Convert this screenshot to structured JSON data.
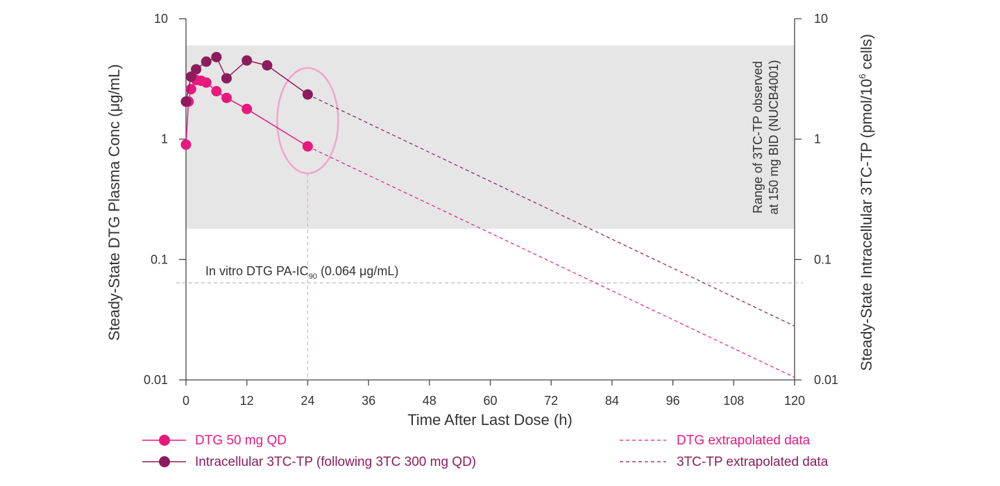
{
  "chart_data": {
    "type": "line",
    "x_axis": {
      "label": "Time After Last Dose (h)",
      "range": [
        0,
        120
      ],
      "ticks": [
        "0",
        "12",
        "24",
        "36",
        "48",
        "60",
        "72",
        "84",
        "96",
        "108",
        "120"
      ]
    },
    "y_left": {
      "label": "Steady-State DTG Plasma Conc (μg/mL)",
      "scale": "log",
      "range": [
        0.01,
        10
      ],
      "ticks": [
        "0.01",
        "0.1",
        "1",
        "10"
      ]
    },
    "y_right": {
      "label_main": "Steady-State Intracellular 3TC-TP (pmol/10",
      "label_sup": "6",
      "label_end": " cells)",
      "scale": "log",
      "range": [
        0.01,
        10
      ],
      "ticks": [
        "0.01",
        "0.1",
        "1",
        "10"
      ]
    },
    "shaded_band": {
      "y_range": [
        0.18,
        6.0
      ],
      "color": "#e6e6e6",
      "label_line1": "Range of 3TC-TP observed",
      "label_line2": "at 150 mg BID (NUCB4001)"
    },
    "reference_line": {
      "y": 0.064,
      "label_pre": "In vitro DTG PA-IC",
      "label_sub": "90",
      "label_post": " (0.064 μg/mL)",
      "color": "#bbbbbb"
    },
    "highlight_time": 24,
    "series": [
      {
        "name": "DTG 50 mg QD",
        "color": "#e8197d",
        "x": [
          0,
          0.5,
          1,
          2,
          3,
          4,
          6,
          8,
          12,
          24
        ],
        "y": [
          0.9,
          2.05,
          2.6,
          3.1,
          3.05,
          2.95,
          2.5,
          2.2,
          1.78,
          0.87
        ]
      },
      {
        "name": "Intracellular 3TC-TP (following 3TC 300 mg QD)",
        "color": "#8c1c5b",
        "x": [
          0,
          1,
          2,
          4,
          6,
          8,
          12,
          16,
          24
        ],
        "y": [
          2.05,
          3.3,
          3.8,
          4.4,
          4.8,
          3.2,
          4.5,
          4.1,
          2.35
        ]
      }
    ],
    "extrapolated": [
      {
        "name": "DTG extrapolated data",
        "color": "#e8197d",
        "x": [
          24,
          120
        ],
        "y": [
          0.87,
          0.0105
        ]
      },
      {
        "name": "3TC-TP extrapolated data",
        "color": "#8c1c5b",
        "x": [
          24,
          120
        ],
        "y": [
          2.35,
          0.028
        ]
      }
    ]
  },
  "legend": {
    "dtg_label": "DTG 50 mg QD",
    "tp_label": "Intracellular 3TC-TP (following 3TC 300 mg QD)",
    "dtg_extrap_label": "DTG extrapolated data",
    "tp_extrap_label": "3TC-TP extrapolated data"
  }
}
